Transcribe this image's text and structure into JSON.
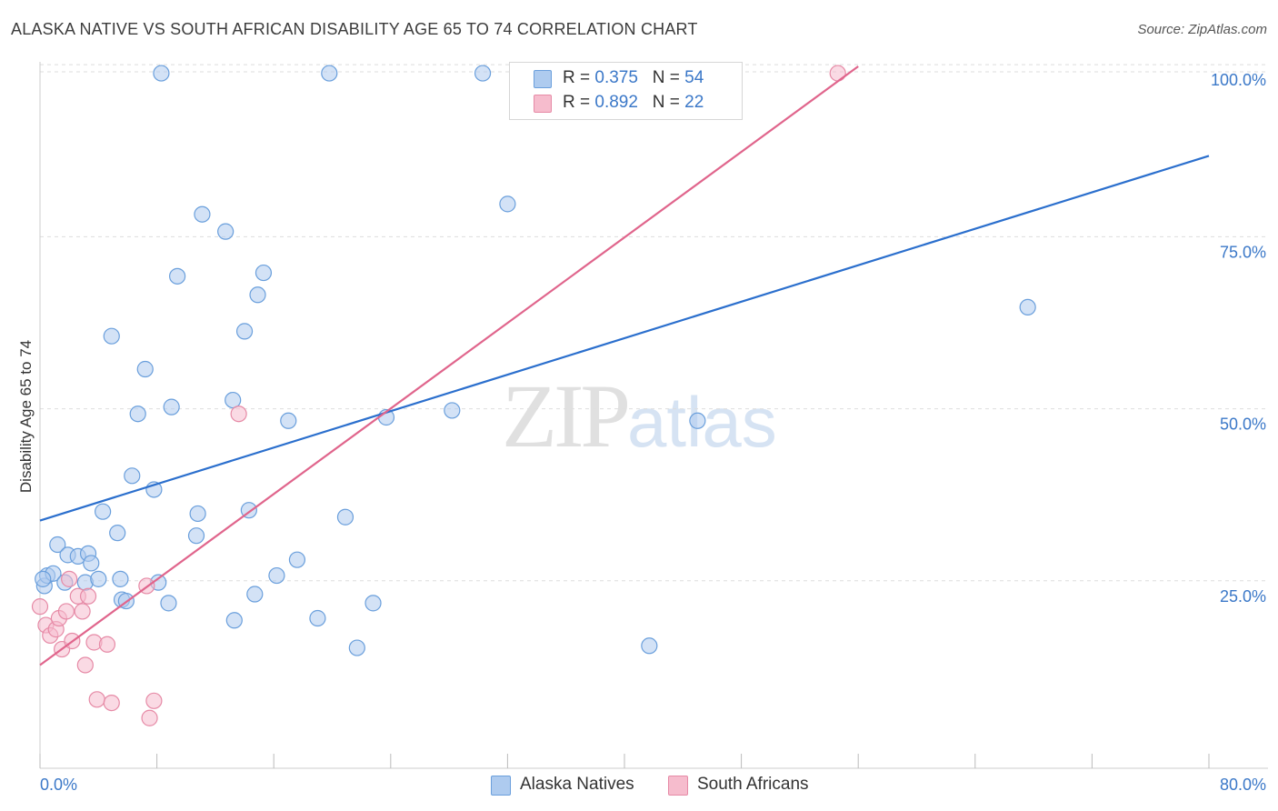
{
  "title": "ALASKA NATIVE VS SOUTH AFRICAN DISABILITY AGE 65 TO 74 CORRELATION CHART",
  "source": "Source: ZipAtlas.com",
  "watermark": {
    "zip": "ZIP",
    "atlas": "atlas"
  },
  "colors": {
    "blue_fill": "#aecbef",
    "blue_stroke": "#6a9fdc",
    "blue_line": "#2b6fcd",
    "pink_fill": "#f6bccd",
    "pink_stroke": "#e68aa6",
    "pink_line": "#e0658c",
    "grid": "#dddddd",
    "axis_text": "#3b78c8"
  },
  "legend": {
    "rows": [
      {
        "r_label": "R = ",
        "r_value": "0.375",
        "n_label": "N = ",
        "n_value": "54"
      },
      {
        "r_label": "R = ",
        "r_value": "0.892",
        "n_label": "N = ",
        "n_value": "22"
      }
    ]
  },
  "bottom_legend": {
    "blue": "Alaska Natives",
    "pink": "South Africans"
  },
  "chart_data": {
    "type": "scatter",
    "title": "ALASKA NATIVE VS SOUTH AFRICAN DISABILITY AGE 65 TO 74 CORRELATION CHART",
    "xlabel": "",
    "ylabel": "Disability Age 65 to 74",
    "xlim": [
      0,
      80
    ],
    "ylim": [
      0,
      102
    ],
    "x_tick_labels": [
      "0.0%",
      "80.0%"
    ],
    "y_ticks": [
      25,
      50,
      75,
      100
    ],
    "y_tick_labels": [
      "25.0%",
      "50.0%",
      "75.0%",
      "100.0%"
    ],
    "grid": true,
    "legend_position": "top-center",
    "series": [
      {
        "name": "Alaska Natives",
        "R": 0.375,
        "N": 54,
        "trend": {
          "x": [
            0,
            80
          ],
          "y": [
            36.0,
            89.0
          ]
        },
        "points": [
          [
            0.3,
            26.5
          ],
          [
            0.5,
            28.0
          ],
          [
            0.9,
            28.3
          ],
          [
            1.2,
            32.5
          ],
          [
            1.7,
            27.0
          ],
          [
            1.9,
            31.0
          ],
          [
            2.6,
            30.8
          ],
          [
            3.1,
            27.0
          ],
          [
            3.3,
            31.2
          ],
          [
            3.5,
            29.8
          ],
          [
            4.0,
            27.5
          ],
          [
            4.3,
            37.3
          ],
          [
            5.3,
            34.2
          ],
          [
            5.5,
            27.5
          ],
          [
            5.6,
            24.5
          ],
          [
            5.9,
            24.3
          ],
          [
            4.9,
            62.8
          ],
          [
            6.3,
            42.5
          ],
          [
            6.7,
            51.5
          ],
          [
            7.2,
            58.0
          ],
          [
            7.8,
            40.5
          ],
          [
            8.1,
            27.0
          ],
          [
            8.3,
            101.0
          ],
          [
            8.8,
            24.0
          ],
          [
            9.0,
            52.5
          ],
          [
            9.4,
            71.5
          ],
          [
            10.7,
            33.8
          ],
          [
            10.8,
            37.0
          ],
          [
            11.1,
            80.5
          ],
          [
            12.7,
            78.0
          ],
          [
            13.2,
            53.5
          ],
          [
            13.3,
            21.5
          ],
          [
            14.0,
            63.5
          ],
          [
            14.3,
            37.5
          ],
          [
            14.7,
            25.3
          ],
          [
            14.9,
            68.8
          ],
          [
            15.3,
            72.0
          ],
          [
            16.2,
            28.0
          ],
          [
            17.0,
            50.5
          ],
          [
            17.6,
            30.3
          ],
          [
            19.0,
            21.8
          ],
          [
            19.8,
            101.0
          ],
          [
            20.9,
            36.5
          ],
          [
            21.7,
            17.5
          ],
          [
            22.8,
            24.0
          ],
          [
            23.7,
            51.0
          ],
          [
            28.2,
            52.0
          ],
          [
            30.3,
            101.0
          ],
          [
            32.0,
            82.0
          ],
          [
            41.7,
            17.8
          ],
          [
            44.5,
            101.0
          ],
          [
            45.0,
            50.5
          ],
          [
            67.6,
            67.0
          ],
          [
            0.2,
            27.5
          ]
        ]
      },
      {
        "name": "South Africans",
        "R": 0.892,
        "N": 22,
        "trend": {
          "x": [
            0,
            56.0
          ],
          "y": [
            15.0,
            102.0
          ]
        },
        "points": [
          [
            0.0,
            23.5
          ],
          [
            0.4,
            20.8
          ],
          [
            0.7,
            19.3
          ],
          [
            1.1,
            20.2
          ],
          [
            1.3,
            21.8
          ],
          [
            1.5,
            17.3
          ],
          [
            1.8,
            22.8
          ],
          [
            2.0,
            27.5
          ],
          [
            2.2,
            18.5
          ],
          [
            2.6,
            25.0
          ],
          [
            2.9,
            22.8
          ],
          [
            3.1,
            15.0
          ],
          [
            3.3,
            25.0
          ],
          [
            3.7,
            18.3
          ],
          [
            3.9,
            10.0
          ],
          [
            4.6,
            18.0
          ],
          [
            4.9,
            9.5
          ],
          [
            7.3,
            26.5
          ],
          [
            7.5,
            7.3
          ],
          [
            7.8,
            9.8
          ],
          [
            13.6,
            51.5
          ],
          [
            54.6,
            101.0
          ]
        ]
      }
    ]
  }
}
